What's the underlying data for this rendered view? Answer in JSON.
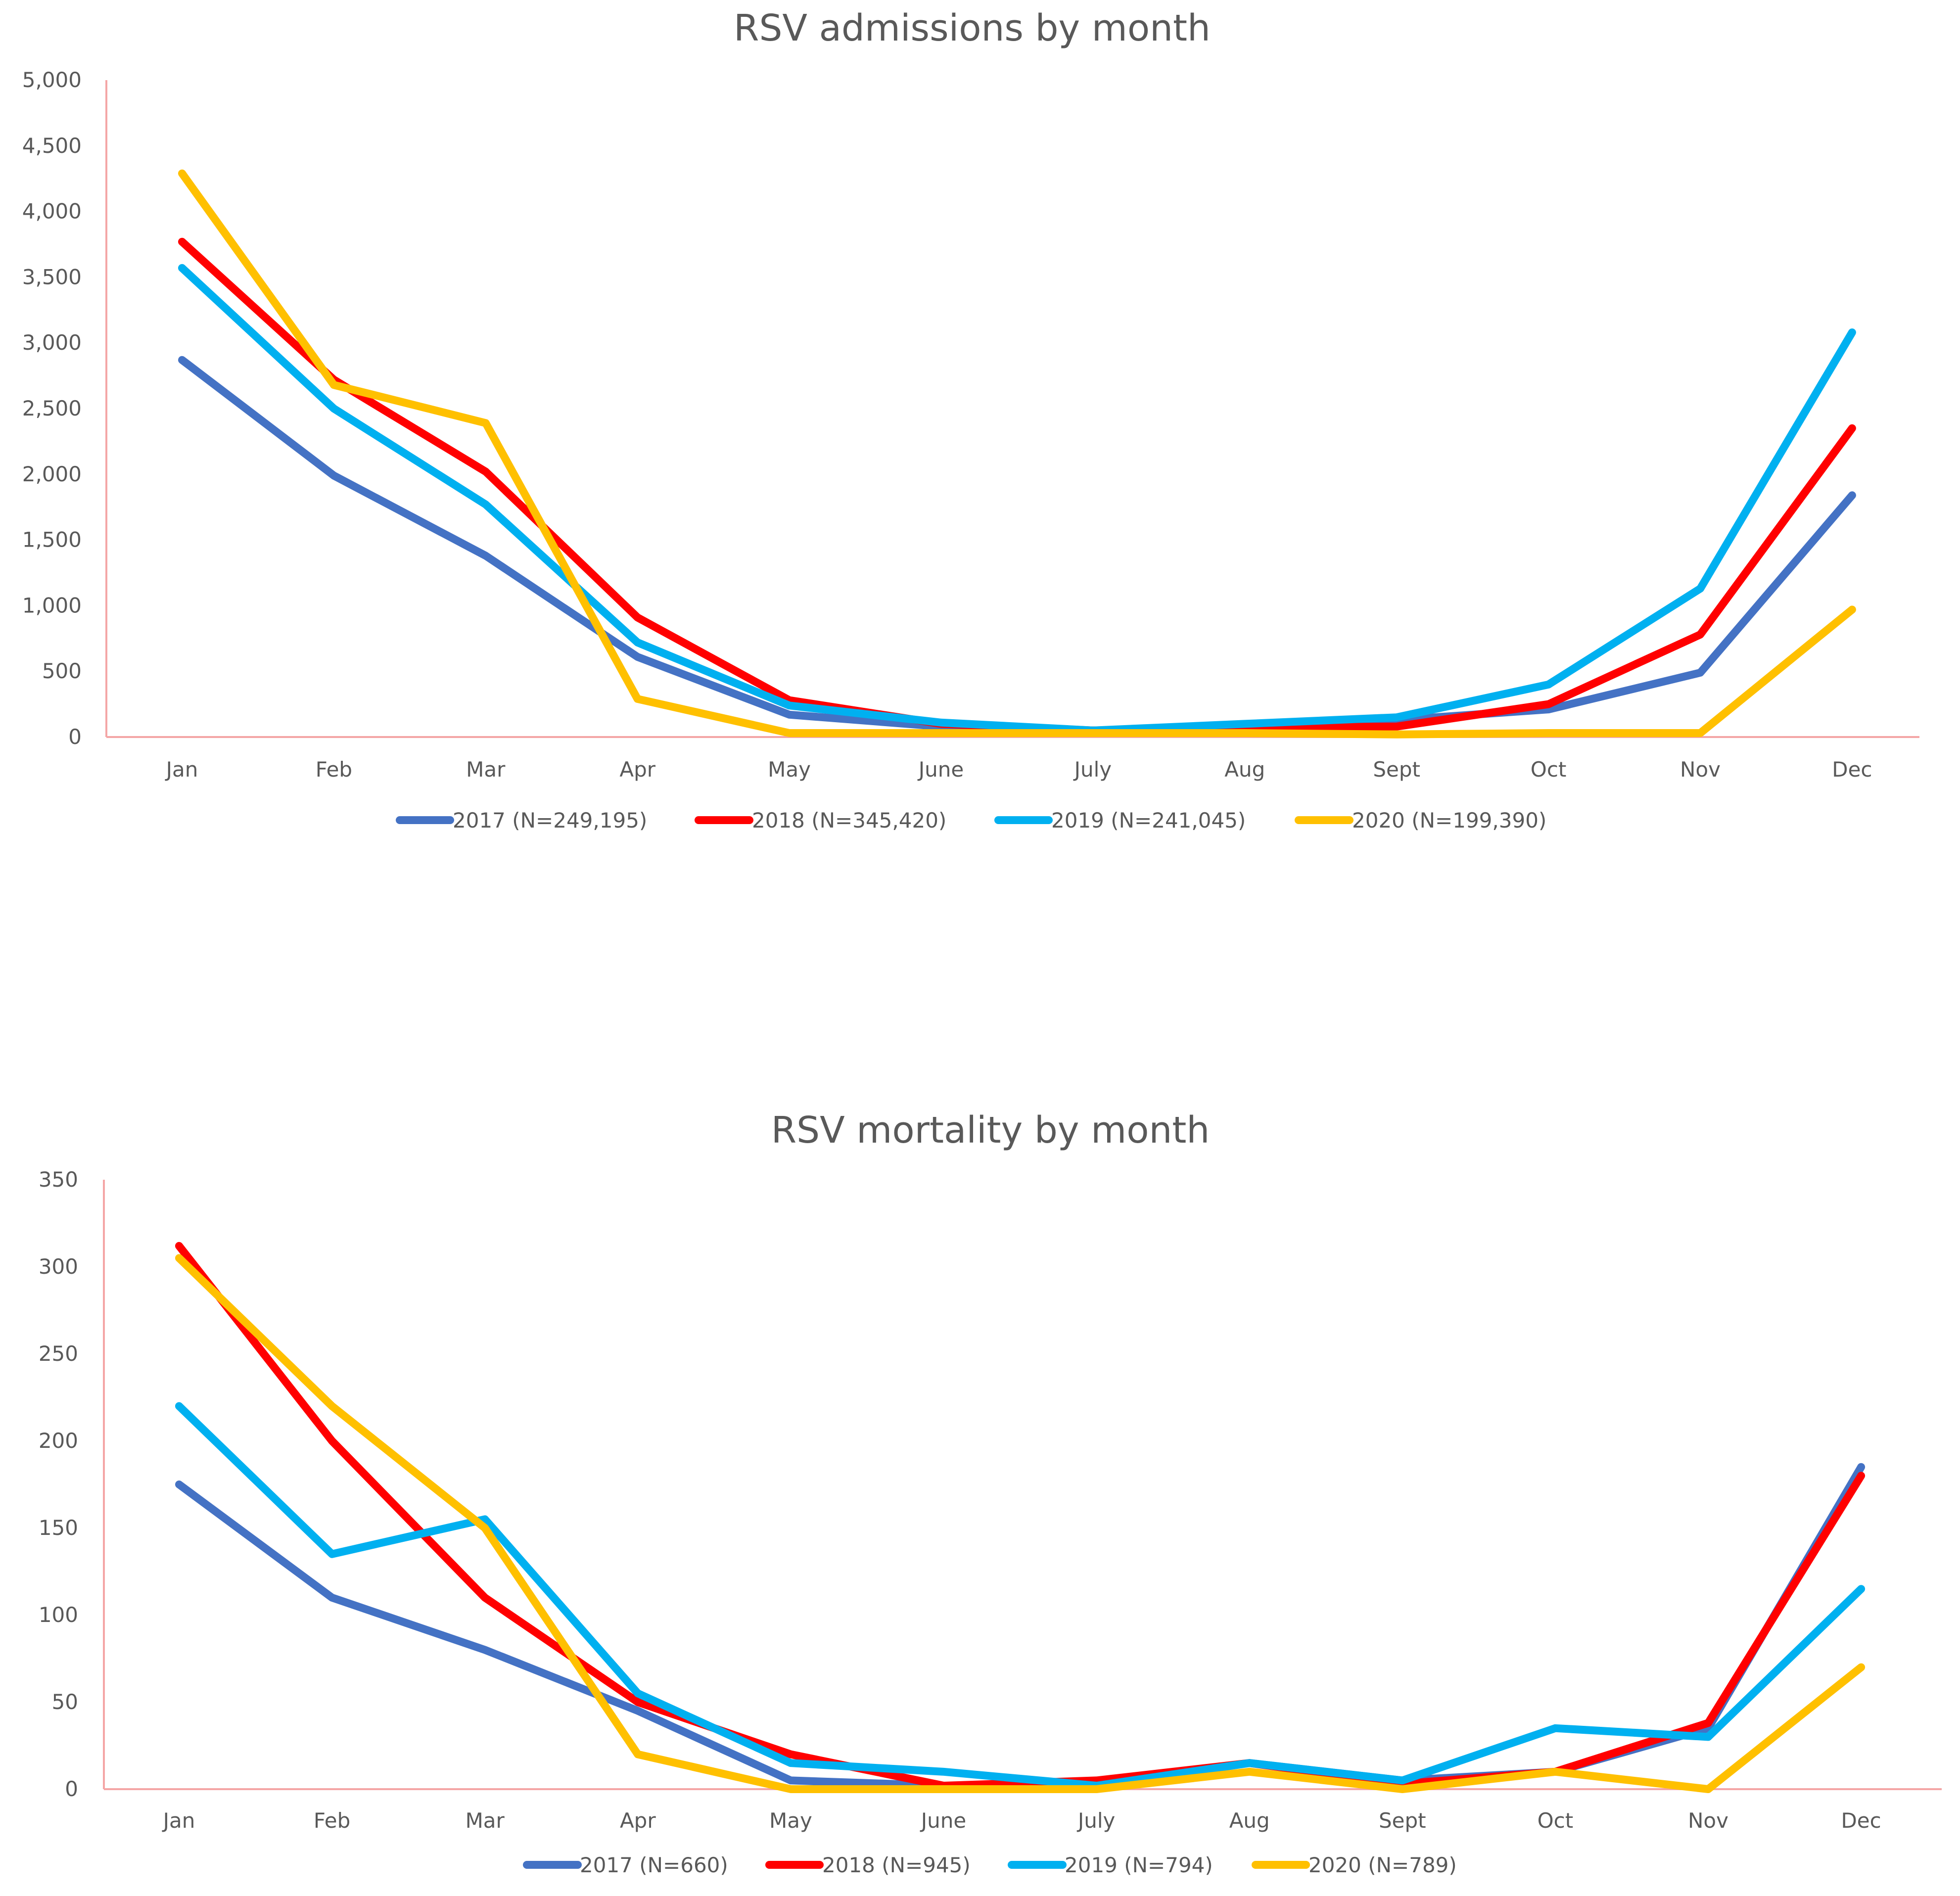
{
  "colors": {
    "2017": "#4472C4",
    "2018": "#FF0000",
    "2019": "#00B0F0",
    "2020": "#FFC000",
    "axis": "#F4A6A6",
    "text": "#595959"
  },
  "chart_data": [
    {
      "type": "line",
      "title": "RSV admissions by month",
      "xlabel": "",
      "ylabel": "",
      "ylim": [
        0,
        5000
      ],
      "grid": false,
      "legend": "bottom",
      "categories": [
        "Jan",
        "Feb",
        "Mar",
        "Apr",
        "May",
        "June",
        "July",
        "Aug",
        "Sept",
        "Oct",
        "Nov",
        "Dec"
      ],
      "y_ticks": [
        "0",
        "500",
        "1,000",
        "1,500",
        "2,000",
        "2,500",
        "3,000",
        "3,500",
        "4,000",
        "4,500",
        "5,000"
      ],
      "y_tick_values": [
        0,
        500,
        1000,
        1500,
        2000,
        2500,
        3000,
        3500,
        4000,
        4500,
        5000
      ],
      "series": [
        {
          "name": "2017 (N=249,195)",
          "color": "#4472C4",
          "values": [
            2870,
            1990,
            1380,
            610,
            170,
            80,
            50,
            80,
            130,
            210,
            490,
            1840
          ]
        },
        {
          "name": "2018 (N=345,420)",
          "color": "#FF0000",
          "values": [
            3770,
            2720,
            2020,
            910,
            280,
            100,
            50,
            70,
            80,
            250,
            780,
            2350
          ]
        },
        {
          "name": "2019 (N=241,045)",
          "color": "#00B0F0",
          "values": [
            3570,
            2500,
            1770,
            720,
            240,
            110,
            50,
            100,
            150,
            400,
            1130,
            3080
          ]
        },
        {
          "name": "2020 (N=199,390)",
          "color": "#FFC000",
          "values": [
            4290,
            2680,
            2390,
            290,
            30,
            30,
            30,
            30,
            20,
            30,
            30,
            970
          ]
        }
      ]
    },
    {
      "type": "line",
      "title": "RSV mortality by month",
      "xlabel": "",
      "ylabel": "",
      "ylim": [
        0,
        350
      ],
      "grid": false,
      "legend": "bottom",
      "categories": [
        "Jan",
        "Feb",
        "Mar",
        "Apr",
        "May",
        "June",
        "July",
        "Aug",
        "Sept",
        "Oct",
        "Nov",
        "Dec"
      ],
      "y_ticks": [
        "0",
        "50",
        "100",
        "150",
        "200",
        "250",
        "300",
        "350"
      ],
      "y_tick_values": [
        0,
        50,
        100,
        150,
        200,
        250,
        300,
        350
      ],
      "series": [
        {
          "name": "2017 (N=660)",
          "color": "#4472C4",
          "values": [
            175,
            110,
            80,
            45,
            5,
            2,
            2,
            15,
            5,
            10,
            35,
            185
          ]
        },
        {
          "name": "2018 (N=945)",
          "color": "#FF0000",
          "values": [
            312,
            200,
            110,
            50,
            20,
            2,
            5,
            15,
            3,
            10,
            38,
            180
          ]
        },
        {
          "name": "2019 (N=794)",
          "color": "#00B0F0",
          "values": [
            220,
            135,
            155,
            55,
            15,
            10,
            2,
            15,
            5,
            35,
            30,
            115
          ]
        },
        {
          "name": "2020 (N=789)",
          "color": "#FFC000",
          "values": [
            305,
            220,
            150,
            20,
            0,
            0,
            0,
            10,
            0,
            10,
            0,
            70
          ]
        }
      ]
    }
  ]
}
